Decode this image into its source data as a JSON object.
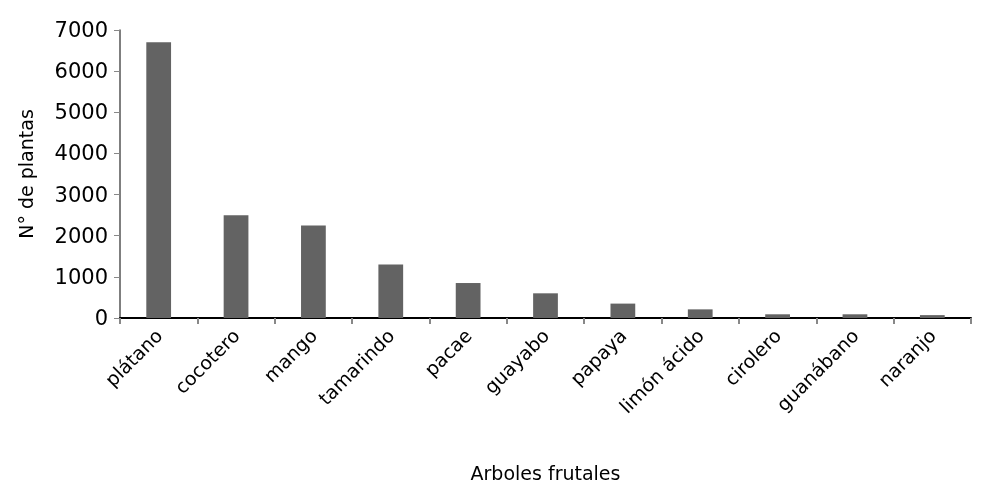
{
  "chart_data": {
    "type": "bar",
    "xlabel": "Arboles frutales",
    "ylabel": "N° de plantas",
    "categories": [
      "plátano",
      "cocotero",
      "mango",
      "tamarindo",
      "pacae",
      "guayabo",
      "papaya",
      "limón ácido",
      "cirolero",
      "guanábano",
      "naranjo"
    ],
    "values": [
      6700,
      2500,
      2250,
      1300,
      850,
      600,
      350,
      210,
      90,
      90,
      70
    ],
    "color": "#636363",
    "ylim": [
      0,
      7000
    ],
    "yticks": [
      0,
      1000,
      2000,
      3000,
      4000,
      5000,
      6000,
      7000
    ],
    "grid": false
  }
}
